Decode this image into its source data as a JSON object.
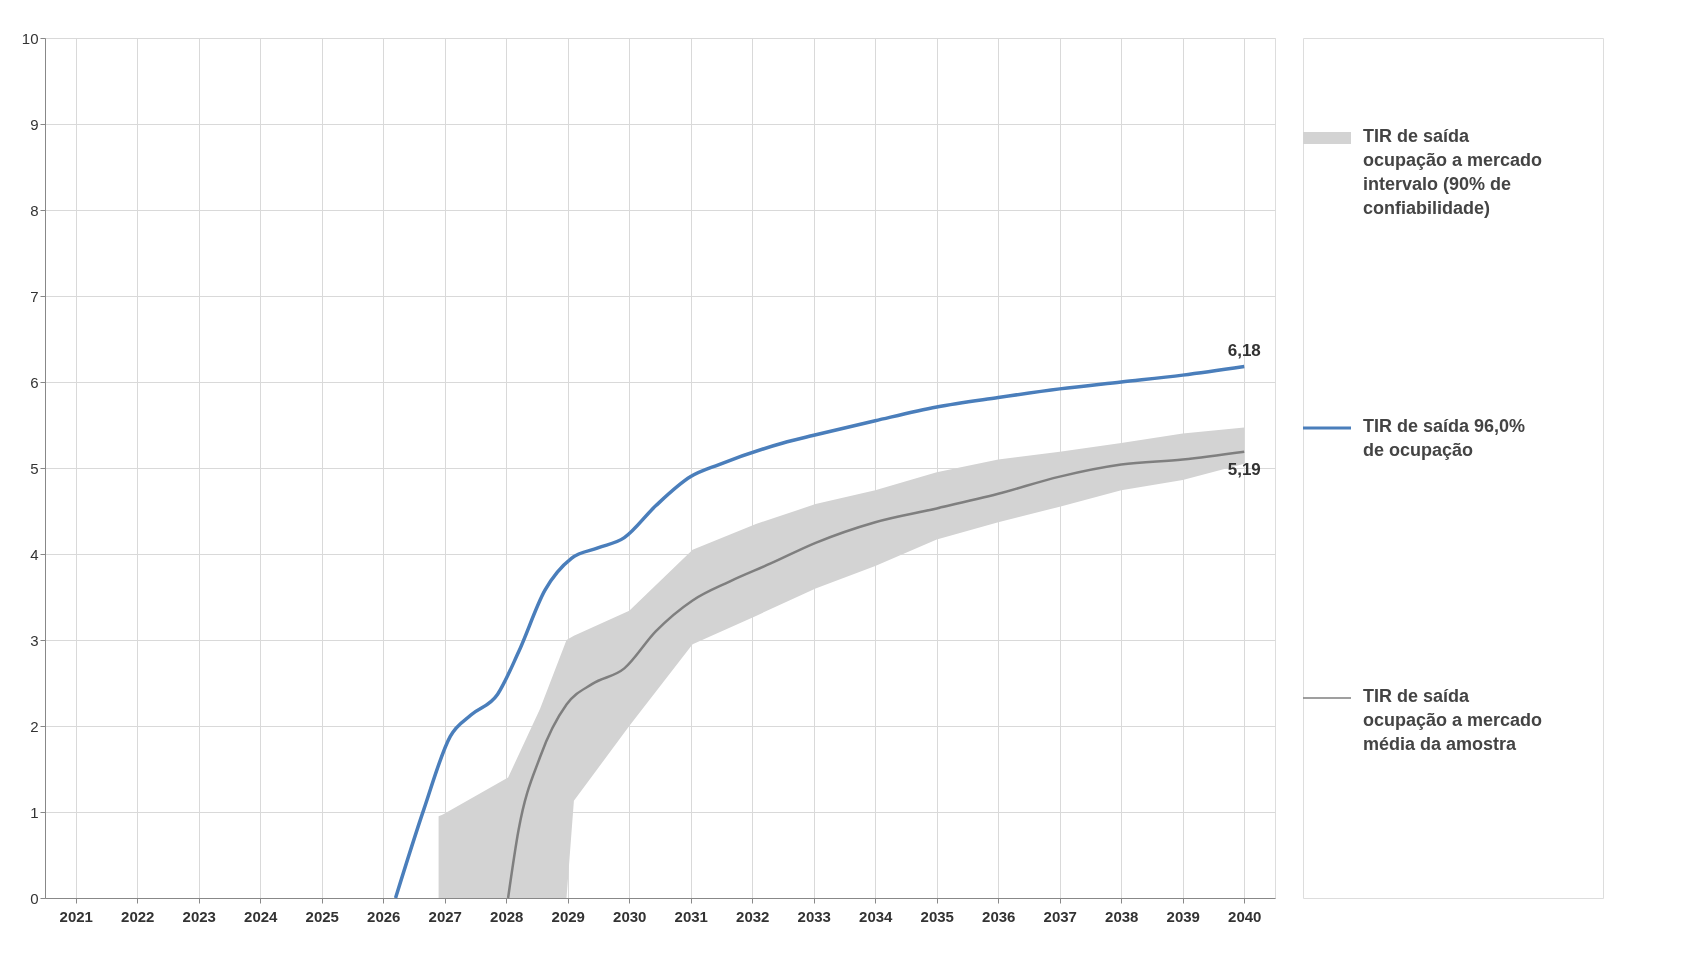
{
  "chart_data": {
    "type": "line",
    "xlim": [
      2020.5,
      2040.5
    ],
    "xticks": [
      2021,
      2022,
      2023,
      2024,
      2025,
      2026,
      2027,
      2028,
      2029,
      2030,
      2031,
      2032,
      2033,
      2034,
      2035,
      2036,
      2037,
      2038,
      2039,
      2040
    ],
    "ylim": [
      0,
      10
    ],
    "yticks": [
      0,
      1,
      2,
      3,
      4,
      5,
      6,
      7,
      8,
      9,
      10
    ],
    "grid": true,
    "legend": "right",
    "series": [
      {
        "name": "TIR de saída ocupação a mercado intervalo (90% de confiabilidade)",
        "type": "area",
        "color": "#d3d3d3",
        "x": [
          2026.9,
          2026.97,
          2028.03,
          2028.55,
          2028.98,
          2029.1,
          2030.0,
          2031.03,
          2032.06,
          2033.03,
          2034.0,
          2035.0,
          2036.0,
          2037.0,
          2038.0,
          2039.0,
          2040.0
        ],
        "values": [
          null,
          null,
          null,
          null,
          null,
          null,
          null,
          null,
          null,
          null,
          null,
          null,
          null,
          null,
          null,
          null,
          null
        ],
        "lower": [
          0,
          0,
          0,
          0,
          0,
          1.13,
          2.0,
          2.95,
          3.28,
          3.6,
          3.86,
          4.17,
          4.37,
          4.55,
          4.74,
          4.86,
          5.05
        ],
        "upper": [
          0.95,
          0.97,
          1.4,
          2.2,
          3.0,
          3.05,
          3.34,
          4.05,
          4.35,
          4.58,
          4.74,
          4.95,
          5.1,
          5.19,
          5.29,
          5.4,
          5.47
        ]
      },
      {
        "name": "TIR de saída 96,0% de ocupação",
        "color": "#4a7ebb",
        "x": [
          2026.2,
          2026.66,
          2027.09,
          2027.43,
          2027.86,
          2028.2,
          2028.63,
          2029.06,
          2029.49,
          2029.92,
          2030.43,
          2031.0,
          2031.46,
          2032.5,
          2033.0,
          2034.0,
          2035.0,
          2036.0,
          2037.0,
          2038.0,
          2039.0,
          2040.0
        ],
        "values": [
          0,
          1.03,
          1.88,
          2.13,
          2.37,
          2.86,
          3.58,
          3.95,
          4.07,
          4.19,
          4.56,
          4.9,
          5.04,
          5.29,
          5.38,
          5.55,
          5.71,
          5.82,
          5.92,
          6.0,
          6.08,
          6.18
        ]
      },
      {
        "name": "TIR de saída ocupação a mercado média da amostra",
        "color": "#7f7f7f",
        "x": [
          2028.03,
          2028.2,
          2028.55,
          2028.98,
          2029.4,
          2029.92,
          2030.43,
          2031.03,
          2031.63,
          2032.3,
          2033.03,
          2034.0,
          2035.0,
          2036.0,
          2037.0,
          2038.0,
          2039.0,
          2040.0
        ],
        "values": [
          0,
          0.79,
          1.64,
          2.25,
          2.49,
          2.67,
          3.1,
          3.46,
          3.68,
          3.89,
          4.13,
          4.37,
          4.53,
          4.7,
          4.9,
          5.04,
          5.1,
          5.19
        ]
      }
    ],
    "annotations": [
      {
        "text": "6,18",
        "x": 2040,
        "y": 6.18
      },
      {
        "text": "5,19",
        "x": 2040,
        "y": 5.19
      }
    ]
  }
}
